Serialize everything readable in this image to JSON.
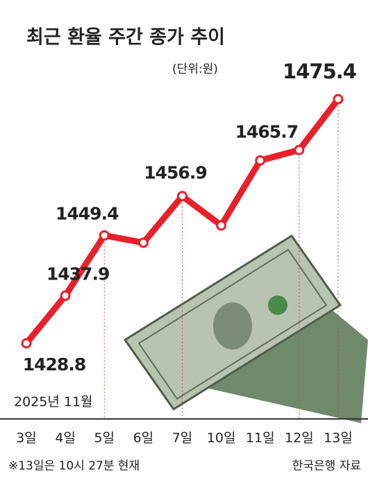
{
  "chart_data": {
    "type": "line",
    "title": "최근 환율 주간 종가 추이",
    "subtitle": "(단위:원)",
    "period_label": "2025년 11월",
    "footnote": "※13일은 10시 27분 현재",
    "source": "한국은행 자료",
    "categories": [
      "3일",
      "4일",
      "5일",
      "6일",
      "7일",
      "10일",
      "11일",
      "12일",
      "13일"
    ],
    "values": [
      1428.8,
      1437.9,
      1449.4,
      1448.0,
      1456.9,
      1451.3,
      1463.7,
      1465.7,
      1475.4
    ],
    "value_labels": [
      "1428.8",
      "1437.9",
      "1449.4",
      null,
      "1456.9",
      null,
      null,
      "1465.7",
      "1475.4"
    ],
    "color": "#e8202a"
  }
}
